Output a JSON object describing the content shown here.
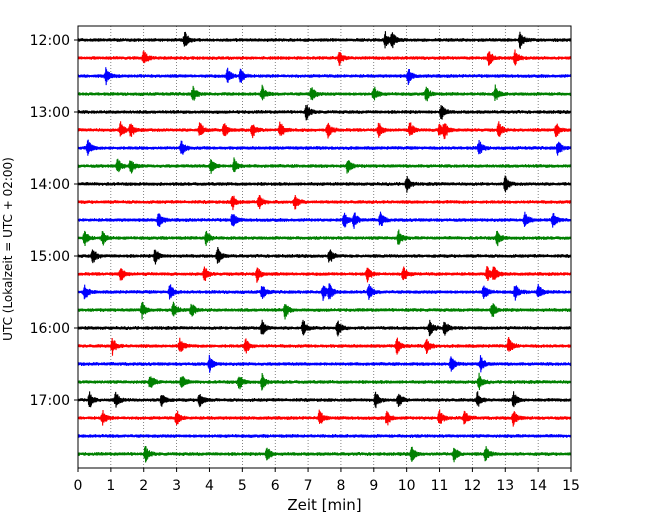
{
  "chart_data": {
    "type": "line",
    "subtype": "helicorder",
    "xlabel": "Zeit  [min]",
    "ylabel": "UTC (Lokalzeit = UTC + 02:00)",
    "xlim": [
      0,
      15
    ],
    "x_ticks": [
      0,
      1,
      2,
      3,
      4,
      5,
      6,
      7,
      8,
      9,
      10,
      11,
      12,
      13,
      14,
      15
    ],
    "x_tick_labels": [
      "0",
      "1",
      "2",
      "3",
      "4",
      "5",
      "6",
      "7",
      "8",
      "9",
      "10",
      "11",
      "12",
      "13",
      "14",
      "15"
    ],
    "y_tick_labels": [
      "12:00",
      "13:00",
      "14:00",
      "15:00",
      "16:00",
      "17:00"
    ],
    "grid": "vertical dotted",
    "colors": [
      "#000000",
      "#ff0000",
      "#0000ff",
      "#008000"
    ],
    "traces": [
      {
        "start": "12:00",
        "events": [
          3.25,
          9.35,
          9.55,
          13.45
        ]
      },
      {
        "start": "12:15",
        "events": [
          2.0,
          7.95,
          12.5,
          13.3
        ]
      },
      {
        "start": "12:30",
        "events": [
          0.85,
          4.55,
          4.95,
          10.05
        ]
      },
      {
        "start": "12:45",
        "events": [
          3.5,
          5.6,
          7.1,
          9.0,
          10.6,
          12.7
        ]
      },
      {
        "start": "13:00",
        "events": [
          6.95,
          11.05
        ]
      },
      {
        "start": "13:15",
        "events": [
          1.3,
          1.6,
          3.7,
          4.45,
          5.3,
          6.15,
          7.6,
          9.15,
          10.1,
          11.0,
          11.15,
          12.8,
          14.55
        ]
      },
      {
        "start": "13:30",
        "events": [
          0.3,
          3.15,
          12.2,
          14.6
        ]
      },
      {
        "start": "13:45",
        "events": [
          1.2,
          1.6,
          4.05,
          4.75,
          8.2
        ]
      },
      {
        "start": "14:00",
        "events": [
          10.0,
          13.0
        ]
      },
      {
        "start": "14:15",
        "events": [
          4.7,
          5.5,
          6.6
        ]
      },
      {
        "start": "14:30",
        "events": [
          2.45,
          4.7,
          8.1,
          8.4,
          9.2,
          13.6,
          14.45
        ]
      },
      {
        "start": "14:45",
        "events": [
          0.2,
          0.75,
          3.9,
          9.75,
          12.75
        ]
      },
      {
        "start": "15:00",
        "events": [
          0.45,
          2.35,
          4.25,
          7.65
        ]
      },
      {
        "start": "15:15",
        "events": [
          1.3,
          3.85,
          5.45,
          8.8,
          9.9,
          12.45,
          12.65
        ]
      },
      {
        "start": "15:30",
        "events": [
          0.2,
          2.8,
          5.6,
          7.45,
          7.65,
          8.85,
          12.35,
          13.3,
          14.0
        ]
      },
      {
        "start": "15:45",
        "events": [
          1.95,
          2.9,
          3.45,
          6.3,
          12.6
        ]
      },
      {
        "start": "16:00",
        "events": [
          5.6,
          6.85,
          7.9,
          10.7,
          11.15
        ]
      },
      {
        "start": "16:15",
        "events": [
          1.05,
          3.1,
          5.1,
          9.7,
          10.6,
          13.1
        ]
      },
      {
        "start": "16:30",
        "events": [
          4.0,
          11.35,
          12.25
        ]
      },
      {
        "start": "16:45",
        "events": [
          2.2,
          3.15,
          4.9,
          5.6,
          12.2
        ]
      },
      {
        "start": "17:00",
        "events": [
          0.35,
          1.15,
          2.55,
          3.7,
          9.05,
          9.75,
          12.15,
          13.25
        ]
      },
      {
        "start": "17:15",
        "events": [
          0.75,
          3.0,
          7.35,
          9.4,
          11.0,
          11.75,
          13.25
        ]
      },
      {
        "start": "17:30",
        "events": []
      },
      {
        "start": "17:45",
        "events": [
          2.05,
          5.75,
          10.15,
          11.45,
          12.4
        ]
      }
    ]
  }
}
